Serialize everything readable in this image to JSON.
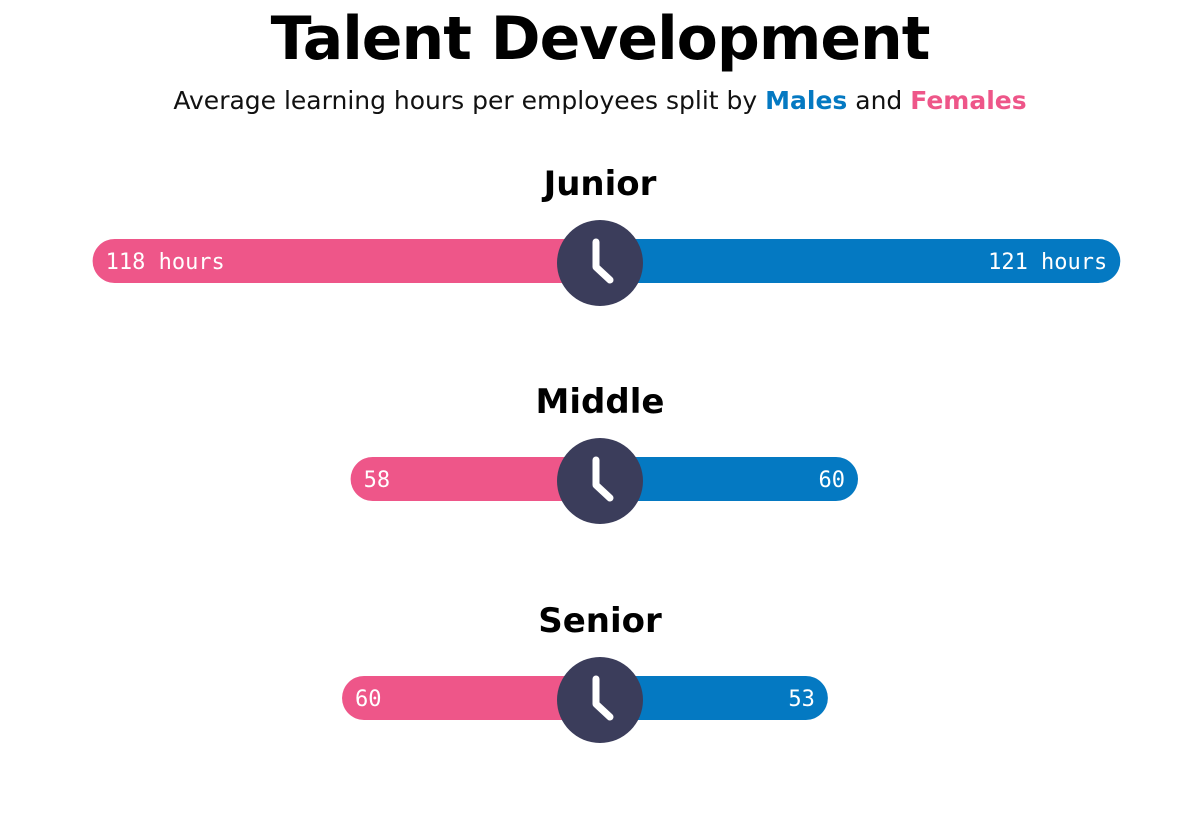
{
  "title": "Talent Development",
  "subtitle": {
    "prefix": "Average learning hours per employees split by",
    "males_label": "Males",
    "connector": "and",
    "females_label": "Females"
  },
  "colors": {
    "male": "#0479c2",
    "female": "#ee5689",
    "icon": "#3b3d5b"
  },
  "icon": "clock-icon",
  "chart_data": {
    "type": "bar",
    "orientation": "diverging-horizontal",
    "categories": [
      "Junior",
      "Middle",
      "Senior"
    ],
    "series": [
      {
        "name": "Females",
        "side": "left",
        "values": [
          118,
          58,
          60
        ],
        "labels": [
          "118 hours",
          "58",
          "60"
        ]
      },
      {
        "name": "Males",
        "side": "right",
        "values": [
          121,
          60,
          53
        ],
        "labels": [
          "121 hours",
          "60",
          "53"
        ]
      }
    ],
    "unit": "hours"
  }
}
